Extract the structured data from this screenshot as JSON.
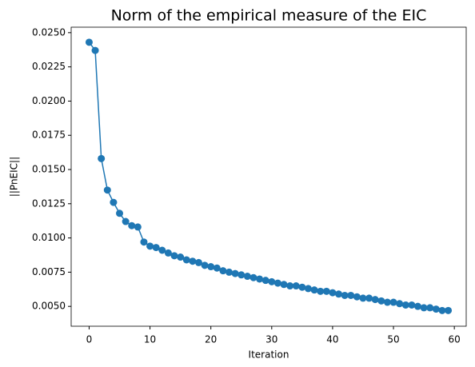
{
  "chart_data": {
    "type": "line",
    "title": "Norm of the empirical measure of the EIC",
    "x_label": "Iteration",
    "y_label": "||PnEIC||",
    "x": [
      0,
      1,
      2,
      3,
      4,
      5,
      6,
      7,
      8,
      9,
      10,
      11,
      12,
      13,
      14,
      15,
      16,
      17,
      18,
      19,
      20,
      21,
      22,
      23,
      24,
      25,
      26,
      27,
      28,
      29,
      30,
      31,
      32,
      33,
      34,
      35,
      36,
      37,
      38,
      39,
      40,
      41,
      42,
      43,
      44,
      45,
      46,
      47,
      48,
      49,
      50,
      51,
      52,
      53,
      54,
      55,
      56,
      57,
      58,
      59
    ],
    "series": [
      {
        "color": "#1f77b4",
        "values": [
          0.0243,
          0.0237,
          0.0158,
          0.0135,
          0.0126,
          0.0118,
          0.0112,
          0.0109,
          0.0108,
          0.0097,
          0.0094,
          0.0093,
          0.0091,
          0.0089,
          0.0087,
          0.0086,
          0.0084,
          0.0083,
          0.0082,
          0.008,
          0.0079,
          0.0078,
          0.0076,
          0.0075,
          0.0074,
          0.0073,
          0.0072,
          0.0071,
          0.007,
          0.0069,
          0.0068,
          0.0067,
          0.0066,
          0.0065,
          0.0065,
          0.0064,
          0.0063,
          0.0062,
          0.0061,
          0.0061,
          0.006,
          0.0059,
          0.0058,
          0.0058,
          0.0057,
          0.0056,
          0.0056,
          0.0055,
          0.0054,
          0.0053,
          0.0053,
          0.0052,
          0.0051,
          0.0051,
          0.005,
          0.0049,
          0.0049,
          0.0048,
          0.0047,
          0.0047
        ]
      }
    ],
    "xlim": [
      -2.95,
      61.95
    ],
    "xticks": [
      0,
      10,
      20,
      30,
      40,
      50,
      60
    ],
    "ylim": [
      0.00355,
      0.0254
    ],
    "yticks": [
      {
        "value": 0.005,
        "label": "0.0050"
      },
      {
        "value": 0.0075,
        "label": "0.0075"
      },
      {
        "value": 0.01,
        "label": "0.0100"
      },
      {
        "value": 0.0125,
        "label": "0.0125"
      },
      {
        "value": 0.015,
        "label": "0.0150"
      },
      {
        "value": 0.0175,
        "label": "0.0175"
      },
      {
        "value": 0.02,
        "label": "0.0200"
      },
      {
        "value": 0.0225,
        "label": "0.0225"
      },
      {
        "value": 0.025,
        "label": "0.0250"
      }
    ]
  }
}
